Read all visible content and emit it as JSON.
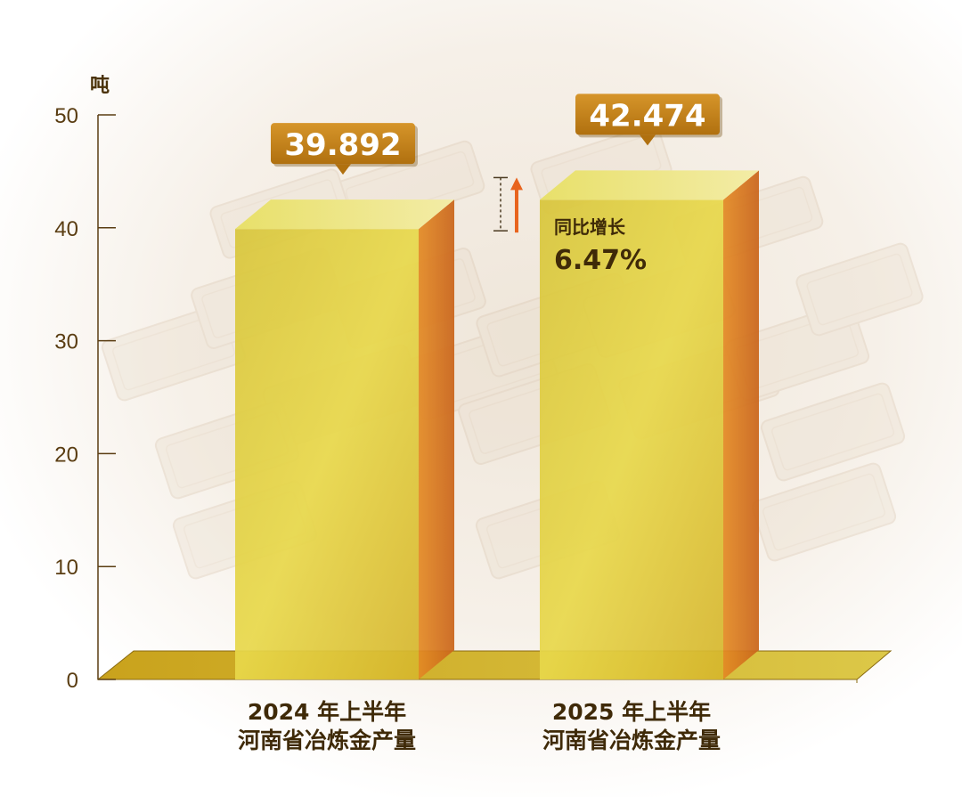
{
  "chart_data": {
    "type": "bar",
    "y_unit": "吨",
    "ylim": [
      0,
      50
    ],
    "yticks": [
      0,
      10,
      20,
      30,
      40,
      50
    ],
    "categories": [
      {
        "line1": "2024 年上半年",
        "line2": "河南省冶炼金产量"
      },
      {
        "line1": "2025 年上半年",
        "line2": "河南省冶炼金产量"
      }
    ],
    "values": [
      39.892,
      42.474
    ],
    "value_labels": [
      "39.892",
      "42.474"
    ],
    "annotation": {
      "label": "同比增长",
      "value": "6.47%"
    },
    "grid": false,
    "colors": {
      "bar_front": "#e6cf3c",
      "bar_side": "#d9731c",
      "bar_top": "#eee48a",
      "callout": "#c8851a",
      "axis": "#5a3d12",
      "arrow": "#e8641e"
    }
  }
}
